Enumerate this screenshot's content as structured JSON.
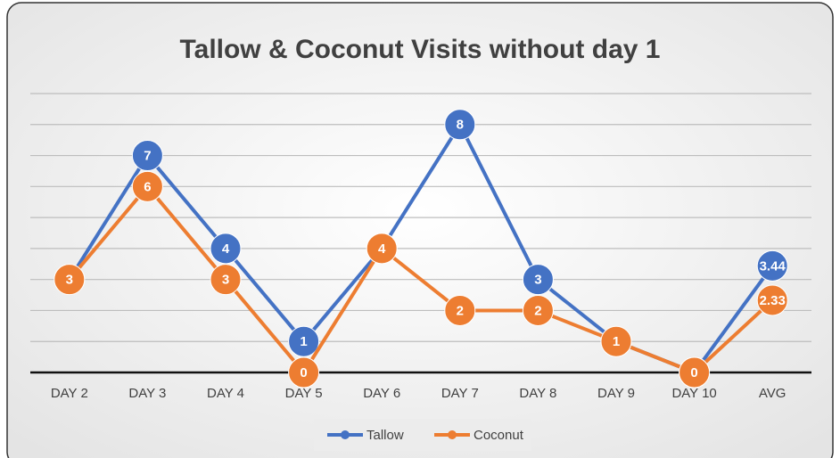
{
  "chart_data": {
    "type": "line",
    "title": "Tallow & Coconut Visits without day 1",
    "categories": [
      "DAY 2",
      "DAY 3",
      "DAY 4",
      "DAY 5",
      "DAY 6",
      "DAY 7",
      "DAY 8",
      "DAY 9",
      "DAY 10",
      "AVG"
    ],
    "series": [
      {
        "name": "Tallow",
        "color": "#4472c4",
        "values": [
          3,
          7,
          4,
          1,
          4,
          8,
          3,
          1,
          0,
          3.44
        ]
      },
      {
        "name": "Coconut",
        "color": "#ed7d31",
        "values": [
          3,
          6,
          3,
          0,
          4,
          2,
          2,
          1,
          0,
          2.33
        ]
      }
    ],
    "ylim": [
      0,
      9
    ],
    "yticks": [
      0,
      1,
      2,
      3,
      4,
      5,
      6,
      7,
      8,
      9
    ],
    "grid": true,
    "legend": "bottom"
  }
}
